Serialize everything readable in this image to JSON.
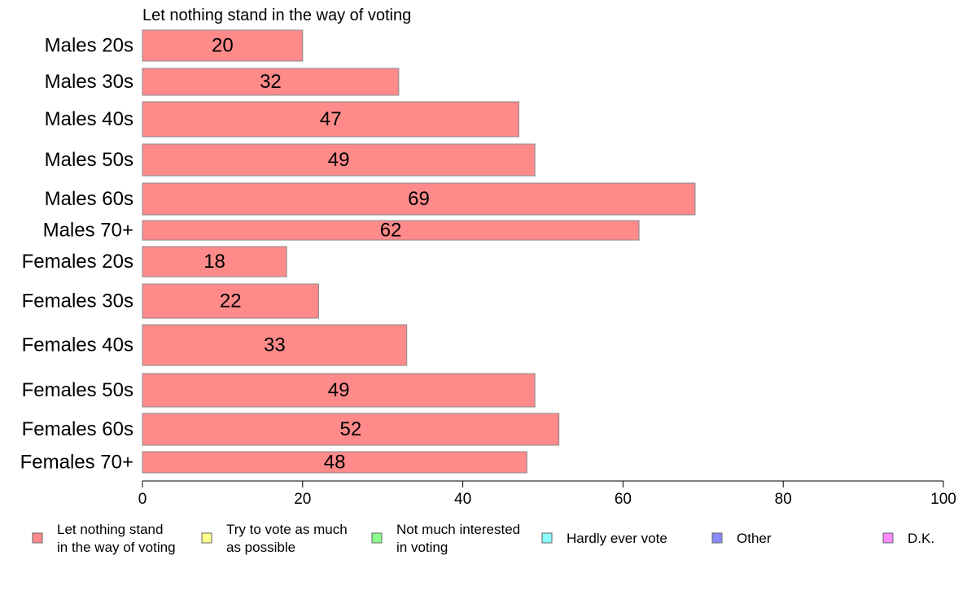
{
  "chart_data": {
    "type": "bar",
    "orientation": "horizontal",
    "title": "Let nothing stand in the way of voting",
    "categories": [
      "Males 20s",
      "Males 30s",
      "Males 40s",
      "Males 50s",
      "Males 60s",
      "Males 70+",
      "Females 20s",
      "Females 30s",
      "Females 40s",
      "Females 50s",
      "Females 60s",
      "Females 70+"
    ],
    "series": [
      {
        "name": "Let nothing stand in the way of voting",
        "values": [
          20,
          32,
          47,
          49,
          69,
          62,
          18,
          22,
          33,
          49,
          52,
          48
        ]
      }
    ],
    "data_labels": [
      "20",
      "32",
      "47",
      "49",
      "69",
      "62",
      "18",
      "22",
      "33",
      "49",
      "52",
      "48"
    ],
    "xlim": [
      0,
      100
    ],
    "x_ticks": [
      "0",
      "20",
      "40",
      "60",
      "80",
      "100"
    ],
    "grid": false,
    "bar_color": "#ff8a8a",
    "bar_border": "#8a8a8a",
    "legend_position": "bottom",
    "legend": [
      {
        "lines": [
          "Let nothing stand",
          "in the way of voting"
        ],
        "color": "#ff8a8a"
      },
      {
        "lines": [
          "Try to vote as much",
          "as possible"
        ],
        "color": "#ffff8a"
      },
      {
        "lines": [
          "Not much interested",
          "in voting"
        ],
        "color": "#8aff8a"
      },
      {
        "lines": [
          "Hardly ever vote"
        ],
        "color": "#8affff"
      },
      {
        "lines": [
          "Other"
        ],
        "color": "#8a8aff"
      },
      {
        "lines": [
          "D.K."
        ],
        "color": "#ff8aff"
      }
    ]
  }
}
